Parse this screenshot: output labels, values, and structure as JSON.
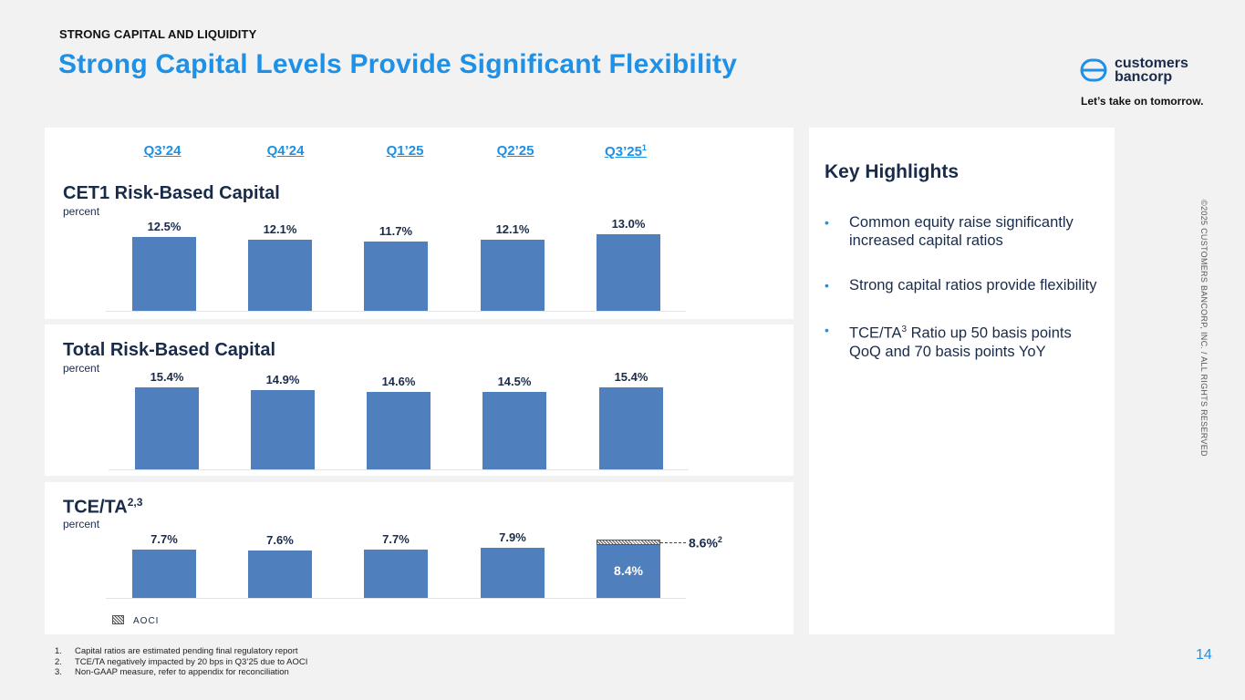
{
  "header": {
    "eyebrow": "STRONG CAPITAL AND LIQUIDITY",
    "title": "Strong Capital Levels Provide Significant Flexibility"
  },
  "brand": {
    "name_line1": "customers",
    "name_line2": "bancorp",
    "tagline": "Let’s take on tomorrow.",
    "accent_color": "#1e90e6",
    "bar_color": "#4f7fbd"
  },
  "quarters": [
    "Q3’24",
    "Q4’24",
    "Q1’25",
    "Q2’25",
    "Q3’25"
  ],
  "quarter_footnote": "1",
  "chart_data": [
    {
      "type": "bar",
      "title": "CET1 Risk-Based Capital",
      "unit": "percent",
      "categories": [
        "Q3’24",
        "Q4’24",
        "Q1’25",
        "Q2’25",
        "Q3’25"
      ],
      "values": [
        12.5,
        12.1,
        11.7,
        12.1,
        13.0
      ],
      "labels": [
        "12.5%",
        "12.1%",
        "11.7%",
        "12.1%",
        "13.0%"
      ]
    },
    {
      "type": "bar",
      "title": "Total Risk-Based Capital",
      "unit": "percent",
      "categories": [
        "Q3’24",
        "Q4’24",
        "Q1’25",
        "Q2’25",
        "Q3’25"
      ],
      "values": [
        15.4,
        14.9,
        14.6,
        14.5,
        15.4
      ],
      "labels": [
        "15.4%",
        "14.9%",
        "14.6%",
        "14.5%",
        "15.4%"
      ]
    },
    {
      "type": "bar",
      "title": "TCE/TA",
      "title_sup": "2,3",
      "unit": "percent",
      "categories": [
        "Q3’24",
        "Q4’24",
        "Q1’25",
        "Q2’25",
        "Q3’25"
      ],
      "values": [
        7.7,
        7.6,
        7.7,
        7.9,
        8.4
      ],
      "labels": [
        "7.7%",
        "7.6%",
        "7.7%",
        "7.9%",
        "8.4%"
      ],
      "aoci_series": {
        "name": "AOCI",
        "category": "Q3’25",
        "value": 0.2,
        "total": 8.6,
        "total_label": "8.6%",
        "total_sup": "2"
      },
      "legend": [
        "AOCI"
      ]
    }
  ],
  "highlights": {
    "title": "Key Highlights",
    "item1": "Common equity raise significantly increased capital ratios",
    "item2": "Strong capital ratios provide flexibility",
    "item3_pre": "TCE/TA",
    "item3_sup": "3",
    "item3_post": " Ratio up 50 basis points QoQ and 70 basis points YoY"
  },
  "footnotes": [
    {
      "n": "1.",
      "text": "Capital ratios are estimated pending final regulatory report"
    },
    {
      "n": "2.",
      "text": "TCE/TA negatively impacted by 20 bps in Q3’25 due to AOCI"
    },
    {
      "n": "3.",
      "text": "Non-GAAP measure, refer to appendix for reconciliation"
    }
  ],
  "copyright": "©2025 CUSTOMERS BANCORP, INC. / ALL RIGHTS RESERVED",
  "page_number": "14"
}
